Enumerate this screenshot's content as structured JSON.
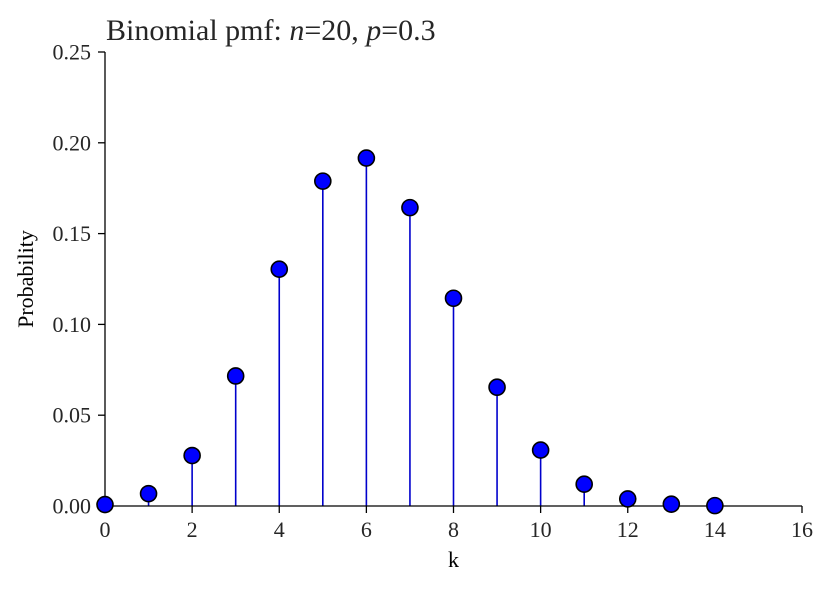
{
  "chart_data": {
    "type": "scatter",
    "subtype": "stem",
    "title": {
      "prefix": "Binomial pmf: ",
      "n_symbol": "n",
      "n_value": "=20, ",
      "p_symbol": "p",
      "p_value": "=0.3"
    },
    "xlabel": "k",
    "ylabel": "Probability",
    "xlim": [
      0,
      16
    ],
    "ylim": [
      0,
      0.25
    ],
    "x_ticks": [
      0,
      2,
      4,
      6,
      8,
      10,
      12,
      14,
      16
    ],
    "x_tick_labels": [
      "0",
      "2",
      "4",
      "6",
      "8",
      "10",
      "12",
      "14",
      "16"
    ],
    "y_ticks": [
      0,
      0.05,
      0.1,
      0.15,
      0.2,
      0.25
    ],
    "y_tick_labels": [
      "0.00",
      "0.05",
      "0.10",
      "0.15",
      "0.20",
      "0.25"
    ],
    "grid": false,
    "series": [
      {
        "x": [
          0,
          1,
          2,
          3,
          4,
          5,
          6,
          7,
          8,
          9,
          10,
          11,
          12,
          13,
          14
        ],
        "y": [
          0.0008,
          0.0068,
          0.0278,
          0.0716,
          0.1304,
          0.1789,
          0.1916,
          0.1643,
          0.1144,
          0.0654,
          0.0308,
          0.012,
          0.0039,
          0.001,
          0.0002
        ],
        "marker_color": "#0000ff",
        "marker_edge_color": "#000000",
        "stem_color": "#0000cc"
      }
    ]
  }
}
